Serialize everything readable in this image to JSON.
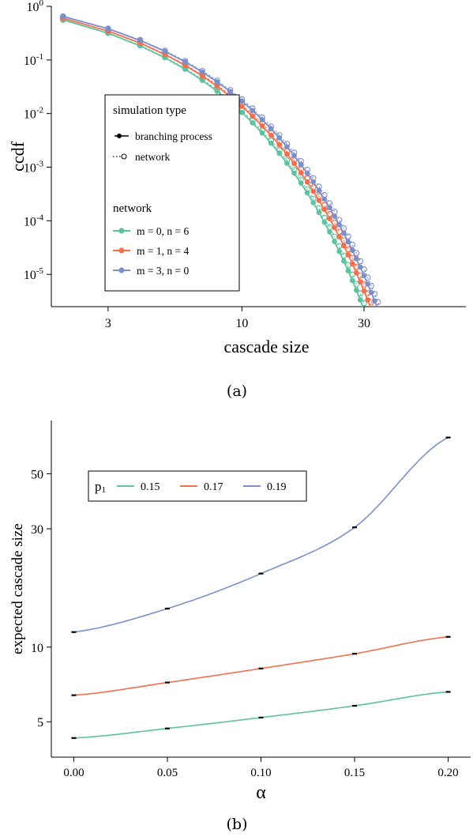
{
  "captions": {
    "a": "(a)",
    "b": "(b)"
  },
  "colors": {
    "green": "#5fc19d",
    "orange": "#f0714f",
    "blue": "#7d8fc9"
  },
  "chart_data": [
    {
      "id": "a",
      "type": "scatter",
      "xlabel": "cascade size",
      "ylabel": "ccdf",
      "xscale": "log",
      "yscale": "log",
      "xlim": [
        1.8,
        75
      ],
      "ylim": [
        2.5e-06,
        1.0
      ],
      "xticks": [
        3,
        10,
        30
      ],
      "yticks": [
        {
          "value": 1,
          "base": "10",
          "exp": "0"
        },
        {
          "value": 0.1,
          "base": "10",
          "exp": "-1"
        },
        {
          "value": 0.01,
          "base": "10",
          "exp": "-2"
        },
        {
          "value": 0.001,
          "base": "10",
          "exp": "-3"
        },
        {
          "value": 0.0001,
          "base": "10",
          "exp": "-4"
        },
        {
          "value": 1e-05,
          "base": "10",
          "exp": "-5"
        }
      ],
      "grid": false,
      "legend_placement": "center-left",
      "legend": {
        "type_title": "simulation type",
        "type_items": [
          {
            "label": "branching process",
            "marker": "filled",
            "line": "solid"
          },
          {
            "label": "network",
            "marker": "open",
            "line": "dotted"
          }
        ],
        "network_title": "network",
        "network_items": [
          {
            "label": "m = 0, n = 6",
            "color": "#5fc19d"
          },
          {
            "label": "m = 1, n = 4",
            "color": "#f0714f"
          },
          {
            "label": "m = 3, n = 0",
            "color": "#7d8fc9"
          }
        ]
      },
      "series": [
        {
          "color": "#5fc19d",
          "x0": 2,
          "cutoff": 48,
          "amp": 0.56,
          "s0": 2.2,
          "q": 1.41,
          "nu": 1.0,
          "ptx": 2.0
        },
        {
          "color": "#f0714f",
          "x0": 2,
          "cutoff": 54,
          "amp": 0.6,
          "s0": 2.2,
          "q": 1.38,
          "nu": 1.0,
          "ptx": 1.0
        },
        {
          "color": "#7d8fc9",
          "x0": 2,
          "cutoff": 66,
          "amp": 0.65,
          "s0": 2.2,
          "q": 1.36,
          "nu": 1.0,
          "ptx": 1.0
        }
      ]
    },
    {
      "id": "b",
      "type": "line",
      "xlabel": "α",
      "ylabel": "expected cascade size",
      "yscale": "log",
      "xlim": [
        -0.012,
        0.212
      ],
      "ylim": [
        3.6,
        82
      ],
      "xticks": [
        "0.00",
        "0.05",
        "0.10",
        "0.15",
        "0.20"
      ],
      "yticks": [
        5,
        10,
        30,
        50
      ],
      "grid": false,
      "legend_placement": "top-left",
      "legend_title": "p",
      "legend_title_sub": "1",
      "series": [
        {
          "name": "0.15",
          "color": "#5fc19d",
          "x": [
            0.0,
            0.05,
            0.1,
            0.15,
            0.2
          ],
          "y": [
            4.3,
            4.7,
            5.2,
            5.8,
            6.6
          ]
        },
        {
          "name": "0.17",
          "color": "#f0714f",
          "x": [
            0.0,
            0.05,
            0.1,
            0.15,
            0.2
          ],
          "y": [
            6.4,
            7.2,
            8.2,
            9.4,
            11.0
          ]
        },
        {
          "name": "0.19",
          "color": "#7d8fc9",
          "x": [
            0.0,
            0.05,
            0.1,
            0.15,
            0.2
          ],
          "y": [
            11.5,
            14.3,
            19.8,
            30.4,
            70.0
          ]
        }
      ]
    }
  ]
}
